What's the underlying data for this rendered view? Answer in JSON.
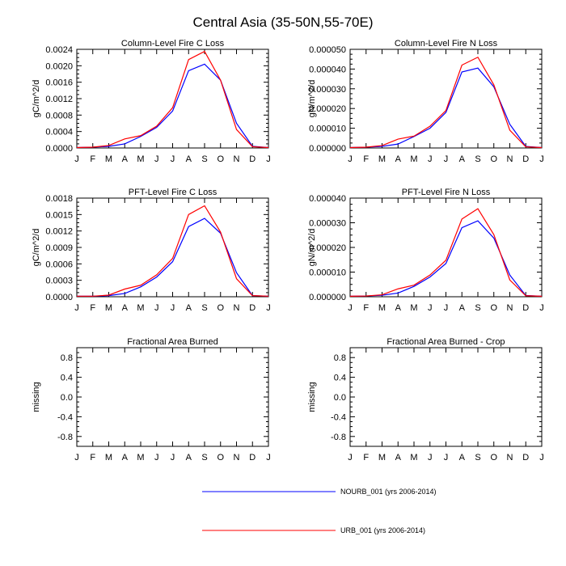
{
  "figure_title": "Central Asia (35-50N,55-70E)",
  "months": [
    "J",
    "F",
    "M",
    "A",
    "M",
    "J",
    "J",
    "A",
    "S",
    "O",
    "N",
    "D",
    "J"
  ],
  "legend": [
    {
      "label": "NOURB_001 (yrs 2006-2014)",
      "color": "#0000ff"
    },
    {
      "label": "URB_001 (yrs 2006-2014)",
      "color": "#ff0000"
    }
  ],
  "chart_data": [
    {
      "type": "line",
      "title": "Column-Level Fire C Loss",
      "ylabel": "gC/m^2/d",
      "ylim": [
        0,
        0.0024
      ],
      "yticks": [
        "0.0000",
        "0.0004",
        "0.0008",
        "0.0012",
        "0.0016",
        "0.0020",
        "0.0024"
      ],
      "series": [
        {
          "name": "NOURB_001 (yrs 2006-2014)",
          "color": "#0000ff",
          "values": [
            1e-05,
            2e-05,
            4e-05,
            0.0001,
            0.00028,
            0.0005,
            0.0009,
            0.00188,
            0.00204,
            0.00165,
            0.0006,
            4e-05,
            1e-05
          ]
        },
        {
          "name": "URB_001 (yrs 2006-2014)",
          "color": "#ff0000",
          "values": [
            1e-05,
            2e-05,
            6e-05,
            0.00022,
            0.0003,
            0.00053,
            0.00098,
            0.00215,
            0.00235,
            0.00165,
            0.00045,
            3e-05,
            1e-05
          ]
        }
      ]
    },
    {
      "type": "line",
      "title": "Column-Level Fire N Loss",
      "ylabel": "gN/m^2/d",
      "ylim": [
        0,
        5e-05
      ],
      "yticks": [
        "0.000000",
        "0.000010",
        "0.000020",
        "0.000030",
        "0.000040",
        "0.000050"
      ],
      "series": [
        {
          "name": "NOURB_001 (yrs 2006-2014)",
          "color": "#0000ff",
          "values": [
            2e-07,
            4e-07,
            8e-07,
            2e-06,
            5.8e-06,
            1e-05,
            1.8e-05,
            3.85e-05,
            4.05e-05,
            3.1e-05,
            1.2e-05,
            8e-07,
            2e-07
          ]
        },
        {
          "name": "URB_001 (yrs 2006-2014)",
          "color": "#ff0000",
          "values": [
            2e-07,
            4e-07,
            1.2e-06,
            4.5e-06,
            6e-06,
            1.1e-05,
            1.9e-05,
            4.2e-05,
            4.6e-05,
            3.2e-05,
            9e-06,
            6e-07,
            2e-07
          ]
        }
      ]
    },
    {
      "type": "line",
      "title": "PFT-Level Fire C Loss",
      "ylabel": "gC/m^2/d",
      "ylim": [
        0,
        0.0018
      ],
      "yticks": [
        "0.0000",
        "0.0003",
        "0.0006",
        "0.0009",
        "0.0012",
        "0.0015",
        "0.0018"
      ],
      "series": [
        {
          "name": "NOURB_001 (yrs 2006-2014)",
          "color": "#0000ff",
          "values": [
            1e-05,
            1e-05,
            2e-05,
            6e-05,
            0.00018,
            0.00036,
            0.00064,
            0.00128,
            0.00143,
            0.00116,
            0.00044,
            2e-05,
            1e-05
          ]
        },
        {
          "name": "URB_001 (yrs 2006-2014)",
          "color": "#ff0000",
          "values": [
            1e-05,
            1e-05,
            3e-05,
            0.00014,
            0.00021,
            0.0004,
            0.0007,
            0.0015,
            0.00166,
            0.00118,
            0.00033,
            2e-05,
            1e-05
          ]
        }
      ]
    },
    {
      "type": "line",
      "title": "PFT-Level Fire N Loss",
      "ylabel": "gN/m^2/d",
      "ylim": [
        0,
        4e-05
      ],
      "yticks": [
        "0.000000",
        "0.000010",
        "0.000020",
        "0.000030",
        "0.000040"
      ],
      "series": [
        {
          "name": "NOURB_001 (yrs 2006-2014)",
          "color": "#0000ff",
          "values": [
            2e-07,
            3e-07,
            6e-07,
            1.5e-06,
            4.2e-06,
            8e-06,
            1.35e-05,
            2.8e-05,
            3.08e-05,
            2.38e-05,
            8.8e-06,
            5e-07,
            2e-07
          ]
        },
        {
          "name": "URB_001 (yrs 2006-2014)",
          "color": "#ff0000",
          "values": [
            2e-07,
            3e-07,
            8e-07,
            3.2e-06,
            4.7e-06,
            8.8e-06,
            1.48e-05,
            3.15e-05,
            3.57e-05,
            2.52e-05,
            6.8e-06,
            4e-07,
            2e-07
          ]
        }
      ]
    },
    {
      "type": "line",
      "title": "Fractional Area Burned",
      "ylabel": "missing",
      "ylim": [
        -1,
        1
      ],
      "yticks": [
        "-0.8",
        "-0.4",
        "0.0",
        "0.4",
        "0.8"
      ],
      "series": []
    },
    {
      "type": "line",
      "title": "Fractional Area Burned - Crop",
      "ylabel": "missing",
      "ylim": [
        -1,
        1
      ],
      "yticks": [
        "-0.8",
        "-0.4",
        "0.0",
        "0.4",
        "0.8"
      ],
      "series": []
    }
  ]
}
